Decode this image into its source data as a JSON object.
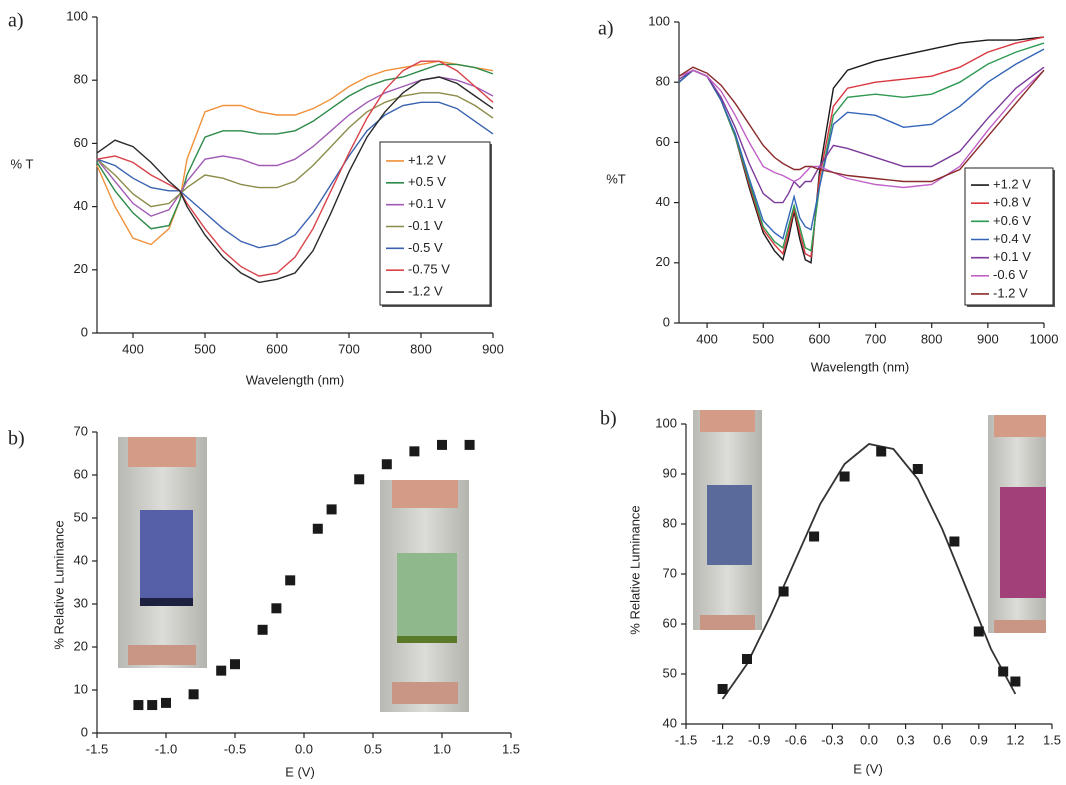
{
  "chart_data": [
    {
      "type": "line",
      "panel_label": "a)",
      "x_label": "Wavelength (nm)",
      "y_label": "% T",
      "x": [
        350,
        375,
        400,
        425,
        450,
        465,
        475,
        500,
        525,
        550,
        575,
        600,
        625,
        650,
        675,
        700,
        725,
        750,
        775,
        800,
        825,
        850,
        875,
        900
      ],
      "xlim": [
        350,
        900
      ],
      "xticks": [
        400,
        500,
        600,
        700,
        800,
        900
      ],
      "ylim": [
        0,
        100
      ],
      "yticks": [
        0,
        20,
        40,
        60,
        80,
        100
      ],
      "legend": "right",
      "series": [
        {
          "name": "+1.2 V",
          "color": "#f0913a",
          "values": [
            53,
            40,
            30,
            28,
            33,
            42,
            55,
            70,
            72,
            72,
            70,
            69,
            69,
            71,
            74,
            78,
            81,
            83,
            84,
            85,
            86,
            85,
            84,
            83
          ]
        },
        {
          "name": "+0.5 V",
          "color": "#2e8a4a",
          "values": [
            54,
            45,
            38,
            33,
            34,
            42,
            50,
            62,
            64,
            64,
            63,
            63,
            64,
            67,
            71,
            75,
            78,
            80,
            81,
            83,
            85,
            85,
            84,
            82
          ]
        },
        {
          "name": "+0.1 V",
          "color": "#a05bb5",
          "values": [
            55,
            48,
            41,
            37,
            39,
            44,
            48,
            55,
            56,
            55,
            53,
            53,
            55,
            59,
            64,
            69,
            73,
            76,
            78,
            80,
            81,
            80,
            78,
            75
          ]
        },
        {
          "name": "-0.1 V",
          "color": "#8c8c4a",
          "values": [
            55,
            50,
            44,
            40,
            41,
            44,
            46,
            50,
            49,
            47,
            46,
            46,
            48,
            53,
            59,
            65,
            70,
            73,
            75,
            76,
            76,
            75,
            72,
            68
          ]
        },
        {
          "name": "-0.5 V",
          "color": "#3a62b0",
          "values": [
            55,
            53,
            49,
            46,
            45,
            45,
            43,
            38,
            33,
            29,
            27,
            28,
            31,
            38,
            47,
            56,
            64,
            69,
            72,
            73,
            73,
            71,
            67,
            63
          ]
        },
        {
          "name": "-0.75 V",
          "color": "#d9434a",
          "values": [
            55,
            56,
            54,
            50,
            47,
            45,
            41,
            33,
            26,
            21,
            18,
            19,
            24,
            33,
            45,
            57,
            68,
            77,
            83,
            86,
            86,
            83,
            78,
            73
          ]
        },
        {
          "name": "-1.2 V",
          "color": "#2a2a2a",
          "values": [
            57,
            61,
            59,
            54,
            48,
            45,
            40,
            31,
            24,
            19,
            16,
            17,
            19,
            26,
            38,
            51,
            62,
            70,
            76,
            80,
            81,
            79,
            75,
            71
          ]
        }
      ]
    },
    {
      "type": "line",
      "panel_label": "a)",
      "x_label": "Wavelength (nm)",
      "y_label": "%T",
      "x": [
        350,
        375,
        400,
        425,
        450,
        475,
        500,
        520,
        535,
        545,
        555,
        565,
        575,
        585,
        600,
        625,
        650,
        700,
        750,
        800,
        850,
        900,
        950,
        1000
      ],
      "xlim": [
        350,
        1000
      ],
      "xticks": [
        400,
        500,
        600,
        700,
        800,
        900,
        1000
      ],
      "ylim": [
        0,
        100
      ],
      "yticks": [
        0,
        20,
        40,
        60,
        80,
        100
      ],
      "legend": "right",
      "series": [
        {
          "name": "+1.2 V",
          "color": "#1a1a1a",
          "values": [
            80,
            84,
            82,
            74,
            62,
            45,
            30,
            24,
            21,
            28,
            37,
            28,
            21,
            20,
            50,
            78,
            84,
            87,
            89,
            91,
            93,
            94,
            94,
            95
          ]
        },
        {
          "name": "+0.8 V",
          "color": "#d9363e",
          "values": [
            80,
            84,
            82,
            74,
            62,
            46,
            31,
            26,
            23,
            30,
            38,
            30,
            23,
            22,
            48,
            72,
            78,
            80,
            81,
            82,
            85,
            90,
            93,
            95
          ]
        },
        {
          "name": "+0.6 V",
          "color": "#2e9a52",
          "values": [
            80,
            84,
            82,
            74,
            62,
            47,
            32,
            27,
            25,
            32,
            39,
            32,
            25,
            24,
            45,
            69,
            75,
            76,
            75,
            76,
            80,
            86,
            90,
            93
          ]
        },
        {
          "name": "+0.4 V",
          "color": "#3366b8",
          "values": [
            80,
            84,
            82,
            74,
            63,
            48,
            34,
            30,
            28,
            35,
            42,
            35,
            32,
            31,
            45,
            66,
            70,
            69,
            65,
            66,
            72,
            80,
            86,
            91
          ]
        },
        {
          "name": "+0.1 V",
          "color": "#7a3a9a",
          "values": [
            81,
            84,
            82,
            75,
            65,
            53,
            43,
            40,
            40,
            43,
            47,
            45,
            47,
            47,
            52,
            59,
            58,
            55,
            52,
            52,
            57,
            68,
            78,
            85
          ]
        },
        {
          "name": "-0.6 V",
          "color": "#c060c8",
          "values": [
            82,
            84,
            82,
            77,
            69,
            60,
            52,
            50,
            49,
            48,
            47,
            48,
            50,
            52,
            52,
            50,
            48,
            46,
            45,
            46,
            52,
            64,
            75,
            84
          ]
        },
        {
          "name": "-1.2 V",
          "color": "#8a2a2a",
          "values": [
            82,
            85,
            83,
            79,
            73,
            66,
            59,
            55,
            53,
            52,
            51,
            51,
            52,
            52,
            51,
            50,
            49,
            48,
            47,
            47,
            51,
            62,
            73,
            84
          ]
        }
      ]
    },
    {
      "type": "scatter",
      "panel_label": "b)",
      "x_label": "E (V)",
      "y_label": "% Relative Luminance",
      "x": [
        -1.2,
        -1.1,
        -1.0,
        -0.8,
        -0.6,
        -0.5,
        -0.3,
        -0.2,
        -0.1,
        0.1,
        0.2,
        0.4,
        0.6,
        0.8,
        1.0,
        1.2
      ],
      "values": [
        6.5,
        6.5,
        7,
        9,
        14.5,
        16,
        24,
        29,
        35.5,
        47.5,
        52,
        59,
        62.5,
        65.5,
        67,
        67
      ],
      "color": "#1a1a1a",
      "xlim": [
        -1.5,
        1.5
      ],
      "xticks": [
        -1.5,
        {
          "value": -1,
          "label": "-1.0"
        },
        -0.5,
        {
          "value": 0,
          "label": "0.0"
        },
        0.5,
        {
          "value": 1,
          "label": "1.0"
        },
        1.5
      ],
      "ylim": [
        0,
        70
      ],
      "yticks": [
        0,
        10,
        20,
        30,
        40,
        50,
        60,
        70
      ]
    },
    {
      "type": "scatter",
      "panel_label": "b)",
      "x_label": "E (V)",
      "y_label": "% Relative Luminance",
      "x": [
        -1.2,
        -1.0,
        -0.7,
        -0.45,
        -0.2,
        0.1,
        0.4,
        0.7,
        0.9,
        1.1,
        1.2
      ],
      "values": [
        47,
        53,
        66.5,
        77.5,
        89.5,
        94.5,
        91,
        76.5,
        58.5,
        50.5,
        48.5
      ],
      "color": "#1a1a1a",
      "fit": {
        "x": [
          -1.2,
          -1.0,
          -0.8,
          -0.6,
          -0.4,
          -0.2,
          0,
          0.2,
          0.4,
          0.6,
          0.8,
          1.0,
          1.2
        ],
        "values": [
          45,
          52,
          62,
          73,
          84,
          92,
          96,
          95,
          89,
          79,
          67,
          55,
          46
        ]
      },
      "xlim": [
        -1.5,
        1.5
      ],
      "xticks": [
        -1.5,
        -1.2,
        -0.9,
        -0.6,
        -0.3,
        {
          "value": 0,
          "label": "0.0"
        },
        0.3,
        0.6,
        0.9,
        1.2,
        1.5
      ],
      "ylim": [
        40,
        100
      ],
      "yticks": [
        40,
        50,
        60,
        70,
        80,
        90,
        100
      ]
    }
  ]
}
